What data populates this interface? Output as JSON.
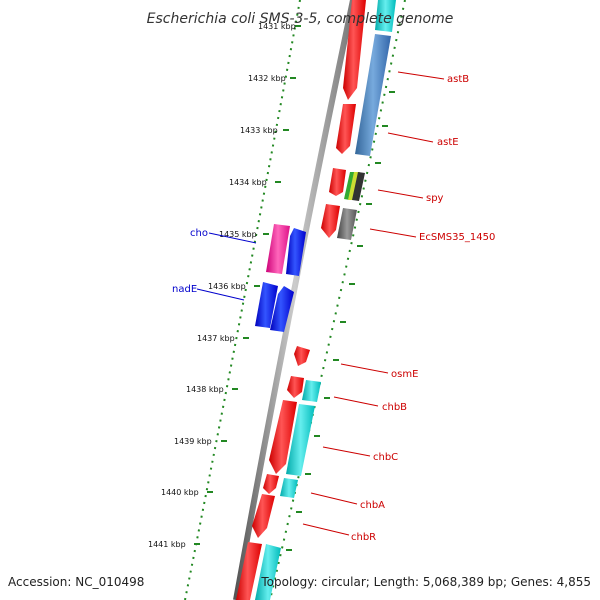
{
  "title": "Escherichia coli SMS-3-5, complete genome",
  "accession": "Accession: NC_010498",
  "topology": "Topology: circular; Length: 5,068,389 bp; Genes: 4,855",
  "ruler": [
    "1431 kbp",
    "1432 kbp",
    "1433 kbp",
    "1434 kbp",
    "1435 kbp",
    "1436 kbp",
    "1437 kbp",
    "1438 kbp",
    "1439 kbp",
    "1440 kbp",
    "1441 kbp"
  ],
  "labels_right": [
    "astB",
    "astE",
    "spy",
    "EcSMS35_1450",
    "osmE",
    "chbB",
    "chbC",
    "chbA",
    "chbR"
  ],
  "labels_left": [
    "cho",
    "nadE"
  ],
  "colors": {
    "forward_gene": "#ff0000",
    "reverse_gene": "#0000ff",
    "cds_cyan": "#00cccc",
    "cds_blue": "#4477bb",
    "cds_magenta": "#ee2299",
    "cds_gray": "#666666",
    "tick": "#228822",
    "label_right": "#cc0000",
    "label_left": "#0000cc",
    "backbone": "#888888"
  }
}
